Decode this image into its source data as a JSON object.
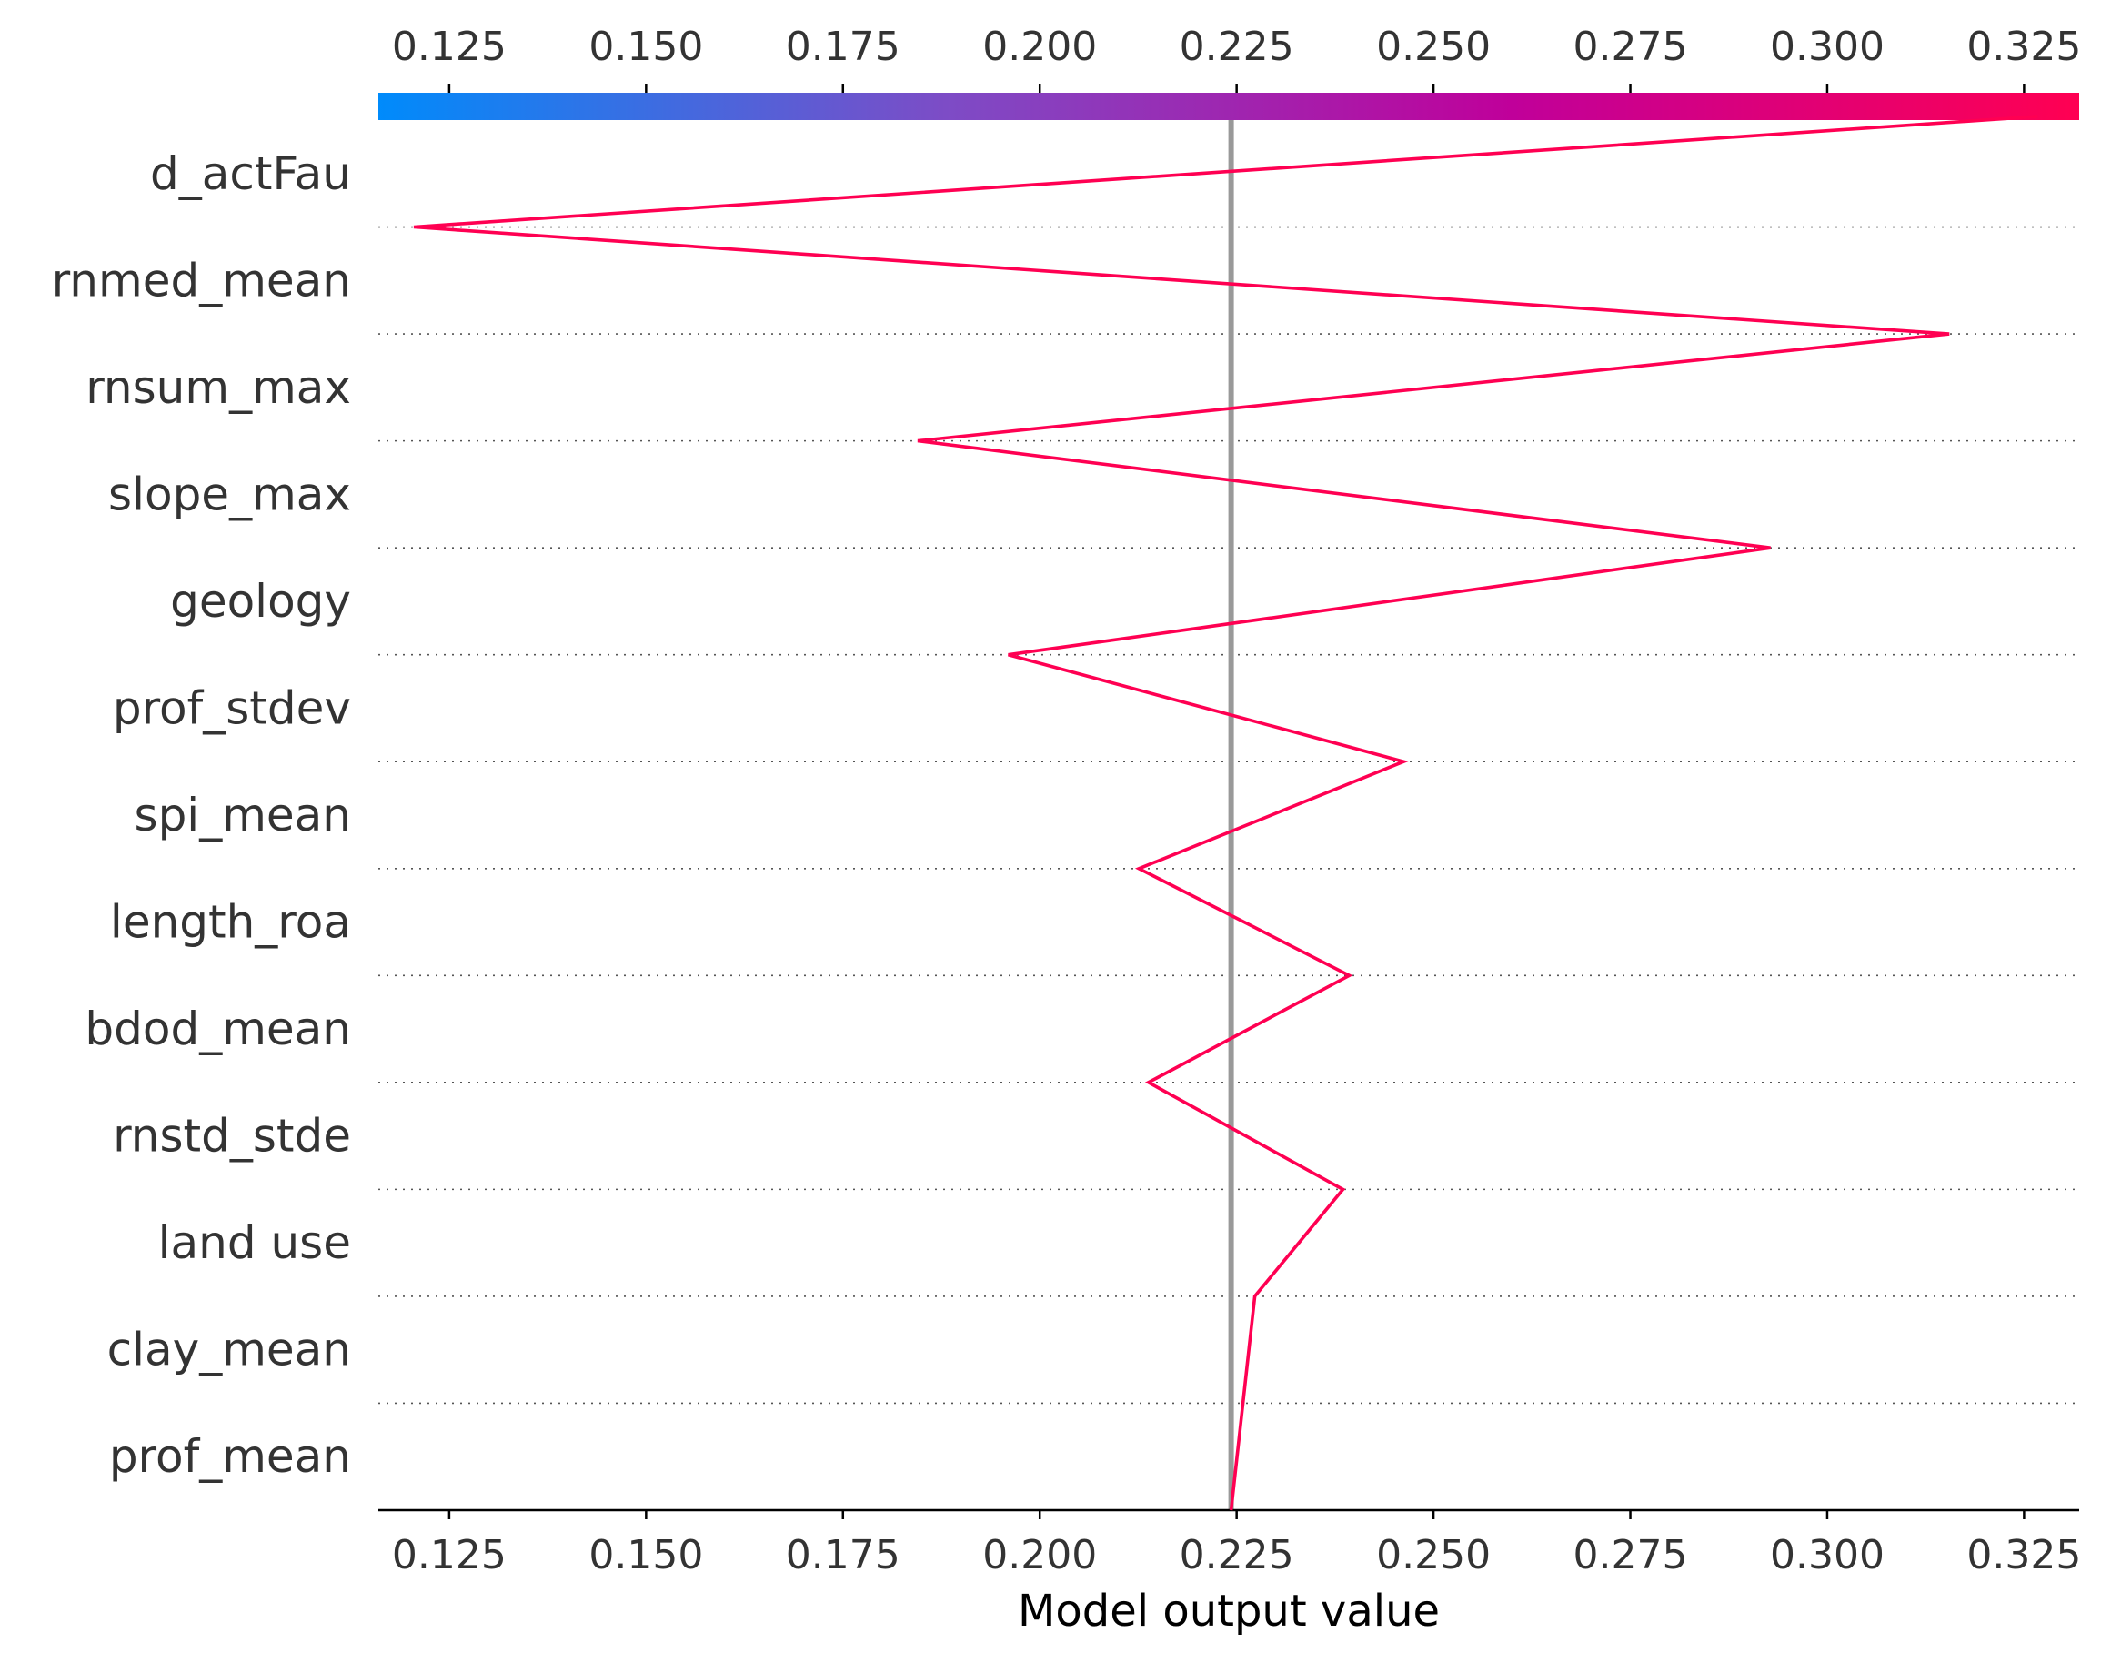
{
  "chart_data": {
    "type": "line",
    "title": "",
    "xlabel": "Model output value",
    "ylabel": "",
    "base_value": 0.2243,
    "xlim": [
      0.116,
      0.332
    ],
    "x_ticks": [
      "0.125",
      "0.150",
      "0.175",
      "0.200",
      "0.225",
      "0.250",
      "0.275",
      "0.300",
      "0.325"
    ],
    "x_tick_values": [
      0.125,
      0.15,
      0.175,
      0.2,
      0.225,
      0.25,
      0.275,
      0.3,
      0.325
    ],
    "features": [
      "d_actFau",
      "rnmed_mean",
      "rnsum_max",
      "slope_max",
      "geology",
      "prof_stdev",
      "spi_mean",
      "length_roa",
      "bdod_mean",
      "rnstd_stde",
      "land use",
      "clay_mean",
      "prof_mean"
    ],
    "series": [
      {
        "values": [
          0.3267,
          0.1205,
          0.3155,
          0.1845,
          0.2928,
          0.196,
          0.2462,
          0.2126,
          0.2393,
          0.2138,
          0.2385,
          0.2273,
          0.2243
        ]
      }
    ],
    "colorbar": {
      "colors": [
        "#008bfb",
        "#7d4cc6",
        "#c0009a",
        "#ff0052"
      ]
    },
    "line_color": "#ff0052",
    "base_line_color": "#999999",
    "grid": "dotted horizontal"
  }
}
